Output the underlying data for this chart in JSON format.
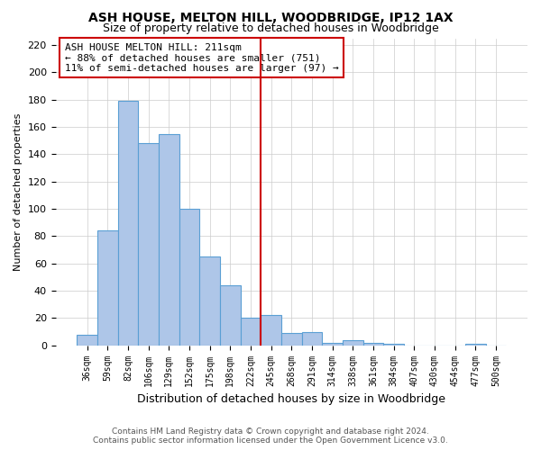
{
  "title": "ASH HOUSE, MELTON HILL, WOODBRIDGE, IP12 1AX",
  "subtitle": "Size of property relative to detached houses in Woodbridge",
  "xlabel": "Distribution of detached houses by size in Woodbridge",
  "ylabel": "Number of detached properties",
  "bin_labels": [
    "36sqm",
    "59sqm",
    "82sqm",
    "106sqm",
    "129sqm",
    "152sqm",
    "175sqm",
    "198sqm",
    "222sqm",
    "245sqm",
    "268sqm",
    "291sqm",
    "314sqm",
    "338sqm",
    "361sqm",
    "384sqm",
    "407sqm",
    "430sqm",
    "454sqm",
    "477sqm",
    "500sqm"
  ],
  "bar_heights": [
    8,
    84,
    179,
    148,
    155,
    100,
    65,
    44,
    20,
    22,
    9,
    10,
    2,
    4,
    2,
    1,
    0,
    0,
    0,
    1,
    0
  ],
  "bar_color": "#aec6e8",
  "bar_edge_color": "#5a9fd4",
  "vline_x": 8.5,
  "vline_color": "#cc0000",
  "ylim": [
    0,
    225
  ],
  "yticks": [
    0,
    20,
    40,
    60,
    80,
    100,
    120,
    140,
    160,
    180,
    200,
    220
  ],
  "annotation_title": "ASH HOUSE MELTON HILL: 211sqm",
  "annotation_line1": "← 88% of detached houses are smaller (751)",
  "annotation_line2": "11% of semi-detached houses are larger (97) →",
  "annotation_box_color": "#cc0000",
  "footer_line1": "Contains HM Land Registry data © Crown copyright and database right 2024.",
  "footer_line2": "Contains public sector information licensed under the Open Government Licence v3.0.",
  "background_color": "#ffffff",
  "grid_color": "#cccccc"
}
